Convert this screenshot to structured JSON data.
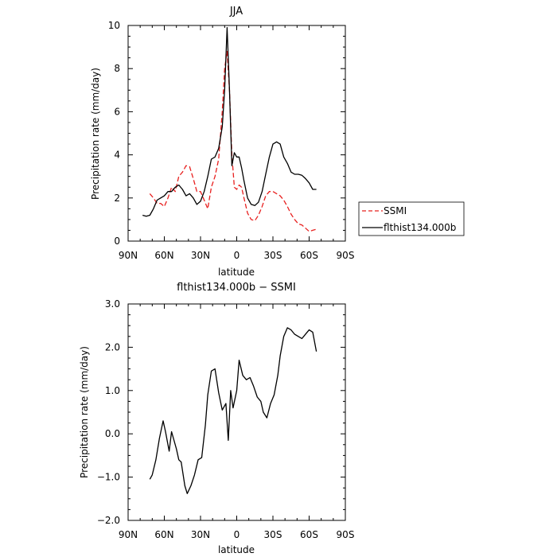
{
  "chart_data": [
    {
      "type": "line",
      "title": "JJA",
      "xlabel": "latitude",
      "ylabel": "Precipitation rate (mm/day)",
      "xlim": [
        90,
        -90
      ],
      "ylim": [
        0,
        10
      ],
      "x_ticks": [
        90,
        60,
        30,
        0,
        -30,
        -60,
        -90
      ],
      "x_tick_labels": [
        "90N",
        "60N",
        "30N",
        "0",
        "30S",
        "60S",
        "90S"
      ],
      "y_ticks": [
        0,
        2,
        4,
        6,
        8,
        10
      ],
      "y_tick_labels": [
        "0",
        "2",
        "4",
        "6",
        "8",
        "10"
      ],
      "legend_position": "right",
      "series": [
        {
          "name": "SSMI",
          "color": "#e8201f",
          "style": "dashed",
          "x": [
            72,
            69,
            66,
            63,
            60,
            57,
            54,
            51,
            48,
            45,
            42,
            39,
            36,
            33,
            30,
            27,
            24,
            21,
            18,
            15,
            12,
            10,
            8,
            6,
            4,
            2,
            0,
            -2,
            -4,
            -6,
            -9,
            -12,
            -15,
            -18,
            -21,
            -24,
            -27,
            -30,
            -33,
            -36,
            -39,
            -42,
            -45,
            -48,
            -51,
            -54,
            -57,
            -60,
            -63,
            -66
          ],
          "y": [
            2.2,
            2.0,
            1.75,
            1.75,
            1.6,
            2.0,
            2.5,
            2.3,
            3.0,
            3.2,
            3.5,
            3.45,
            2.9,
            2.3,
            2.3,
            1.9,
            1.5,
            2.5,
            3.0,
            3.8,
            6.0,
            8.0,
            8.8,
            7.0,
            4.0,
            2.5,
            2.4,
            2.6,
            2.5,
            2.0,
            1.3,
            1.0,
            0.95,
            1.2,
            1.6,
            2.1,
            2.3,
            2.3,
            2.2,
            2.1,
            1.9,
            1.6,
            1.25,
            1.0,
            0.8,
            0.75,
            0.6,
            0.45,
            0.5,
            0.55
          ]
        },
        {
          "name": "flthist134.000b",
          "color": "#000000",
          "style": "solid",
          "x": [
            78,
            75,
            72,
            69,
            66,
            63,
            60,
            57,
            54,
            51,
            48,
            45,
            42,
            39,
            36,
            33,
            30,
            27,
            24,
            21,
            18,
            15,
            12,
            10,
            8,
            6,
            4,
            2,
            0,
            -2,
            -4,
            -6,
            -9,
            -12,
            -15,
            -18,
            -21,
            -24,
            -27,
            -30,
            -33,
            -36,
            -39,
            -42,
            -45,
            -48,
            -51,
            -54,
            -57,
            -60,
            -63,
            -66
          ],
          "y": [
            1.2,
            1.15,
            1.2,
            1.5,
            1.9,
            2.0,
            2.1,
            2.3,
            2.3,
            2.5,
            2.6,
            2.4,
            2.1,
            2.2,
            2.0,
            1.7,
            1.85,
            2.3,
            3.0,
            3.8,
            3.9,
            4.3,
            5.3,
            7.0,
            9.9,
            7.0,
            3.5,
            4.1,
            3.9,
            3.9,
            3.4,
            2.8,
            2.0,
            1.7,
            1.65,
            1.8,
            2.3,
            3.1,
            3.9,
            4.5,
            4.6,
            4.5,
            3.9,
            3.6,
            3.2,
            3.1,
            3.1,
            3.05,
            2.9,
            2.7,
            2.4,
            2.4
          ]
        }
      ]
    },
    {
      "type": "line",
      "title": "flthist134.000b − SSMI",
      "xlabel": "latitude",
      "ylabel": "Precipitation rate (mm/day)",
      "xlim": [
        90,
        -90
      ],
      "ylim": [
        -2,
        3
      ],
      "x_ticks": [
        90,
        60,
        30,
        0,
        -30,
        -60,
        -90
      ],
      "x_tick_labels": [
        "90N",
        "60N",
        "30N",
        "0",
        "30S",
        "60S",
        "90S"
      ],
      "y_ticks": [
        -2,
        -1,
        0,
        1,
        2,
        3
      ],
      "y_tick_labels": [
        "−2.0",
        "−1.0",
        "0.0",
        "1.0",
        "2.0",
        "3.0"
      ],
      "series": [
        {
          "color": "#000000",
          "style": "solid",
          "x": [
            72,
            70,
            67,
            64,
            61,
            59,
            56,
            54,
            50,
            48,
            46,
            43,
            41,
            38,
            35,
            32,
            29,
            26,
            24,
            21,
            18,
            15,
            12,
            9,
            7,
            5,
            3,
            0,
            -2,
            -5,
            -8,
            -11,
            -14,
            -17,
            -20,
            -22,
            -25,
            -28,
            -31,
            -34,
            -36,
            -39,
            -42,
            -45,
            -48,
            -51,
            -54,
            -57,
            -60,
            -63,
            -66
          ],
          "y": [
            -1.05,
            -0.95,
            -0.6,
            -0.1,
            0.3,
            0.05,
            -0.4,
            0.05,
            -0.35,
            -0.6,
            -0.65,
            -1.2,
            -1.38,
            -1.2,
            -0.95,
            -0.6,
            -0.55,
            0.2,
            0.9,
            1.45,
            1.5,
            0.95,
            0.55,
            0.7,
            -0.15,
            1.0,
            0.6,
            1.0,
            1.7,
            1.35,
            1.25,
            1.3,
            1.1,
            0.85,
            0.75,
            0.5,
            0.37,
            0.7,
            0.9,
            1.35,
            1.8,
            2.25,
            2.45,
            2.4,
            2.3,
            2.25,
            2.2,
            2.3,
            2.4,
            2.35,
            1.9
          ]
        }
      ]
    }
  ]
}
